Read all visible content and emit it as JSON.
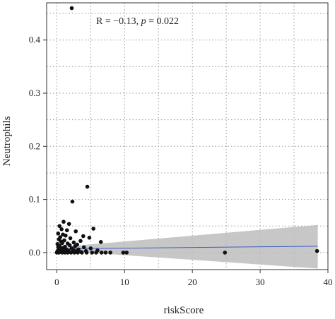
{
  "chart_data": {
    "type": "scatter",
    "title": "",
    "xlabel": "riskScore",
    "ylabel": "Neutrophils",
    "xlim": [
      -1.5,
      40
    ],
    "ylim": [
      -0.032,
      0.47
    ],
    "x_ticks": [
      0,
      10,
      20,
      30,
      40
    ],
    "y_ticks": [
      0.0,
      0.1,
      0.2,
      0.3,
      0.4
    ],
    "x_tick_labels": [
      "0",
      "10",
      "20",
      "30",
      "40"
    ],
    "y_tick_labels": [
      "0.0",
      "0.1",
      "0.2",
      "0.3",
      "0.4"
    ],
    "grid": "dotted",
    "annotation": {
      "prefix": "R = −0.13, ",
      "p_symbol": "p",
      "suffix": " = 0.022"
    },
    "points": [
      [
        2.2,
        0.46
      ],
      [
        4.5,
        0.124
      ],
      [
        2.3,
        0.096
      ],
      [
        1.0,
        0.058
      ],
      [
        1.8,
        0.054
      ],
      [
        0.4,
        0.05
      ],
      [
        5.4,
        0.045
      ],
      [
        0.7,
        0.044
      ],
      [
        1.5,
        0.042
      ],
      [
        2.8,
        0.04
      ],
      [
        0.2,
        0.036
      ],
      [
        0.9,
        0.034
      ],
      [
        1.3,
        0.032
      ],
      [
        3.9,
        0.031
      ],
      [
        0.5,
        0.029
      ],
      [
        4.8,
        0.028
      ],
      [
        2.0,
        0.027
      ],
      [
        0.3,
        0.025
      ],
      [
        1.1,
        0.023
      ],
      [
        3.5,
        0.022
      ],
      [
        0.6,
        0.021
      ],
      [
        6.5,
        0.02
      ],
      [
        2.5,
        0.019
      ],
      [
        0.8,
        0.018
      ],
      [
        1.6,
        0.017
      ],
      [
        0.1,
        0.016
      ],
      [
        3.0,
        0.015
      ],
      [
        1.9,
        0.014
      ],
      [
        0.4,
        0.013
      ],
      [
        2.7,
        0.012
      ],
      [
        1.2,
        0.011
      ],
      [
        0.2,
        0.01
      ],
      [
        4.0,
        0.01
      ],
      [
        0.9,
        0.009
      ],
      [
        2.2,
        0.008
      ],
      [
        5.0,
        0.008
      ],
      [
        0.5,
        0.007
      ],
      [
        1.4,
        0.006
      ],
      [
        3.2,
        0.006
      ],
      [
        0.3,
        0.005
      ],
      [
        2.4,
        0.005
      ],
      [
        1.7,
        0.004
      ],
      [
        0.7,
        0.004
      ],
      [
        6.0,
        0.004
      ],
      [
        0.1,
        0.003
      ],
      [
        1.0,
        0.003
      ],
      [
        2.9,
        0.003
      ],
      [
        4.3,
        0.003
      ],
      [
        0.4,
        0.002
      ],
      [
        1.3,
        0.002
      ],
      [
        0.2,
        0.001
      ],
      [
        0.6,
        0.001
      ],
      [
        1.8,
        0.001
      ],
      [
        3.6,
        0.001
      ],
      [
        0.0,
        0.0
      ],
      [
        0.3,
        0.0
      ],
      [
        0.8,
        0.0
      ],
      [
        1.2,
        0.0
      ],
      [
        1.6,
        0.0
      ],
      [
        2.1,
        0.0
      ],
      [
        2.6,
        0.0
      ],
      [
        3.1,
        0.0
      ],
      [
        3.7,
        0.0
      ],
      [
        4.4,
        0.0
      ],
      [
        5.2,
        0.0
      ],
      [
        5.8,
        0.0
      ],
      [
        6.6,
        0.0
      ],
      [
        7.2,
        0.0
      ],
      [
        7.9,
        0.0
      ],
      [
        9.8,
        0.0
      ],
      [
        10.3,
        0.0
      ],
      [
        24.8,
        0.0
      ],
      [
        38.4,
        0.003
      ]
    ],
    "fit_line": {
      "x_start": 0,
      "x_end": 38.5,
      "y_start": 0.007,
      "y_end": 0.012,
      "ci_lower_end": -0.03,
      "ci_upper_end": 0.052,
      "ci_lower_start": 0.004,
      "ci_upper_start": 0.01
    },
    "colors": {
      "points": "#111111",
      "fit_line": "#3b5fc0",
      "ci_band": "#bdbdbd",
      "grid": "#9a9a9a",
      "axis": "#333333"
    }
  }
}
